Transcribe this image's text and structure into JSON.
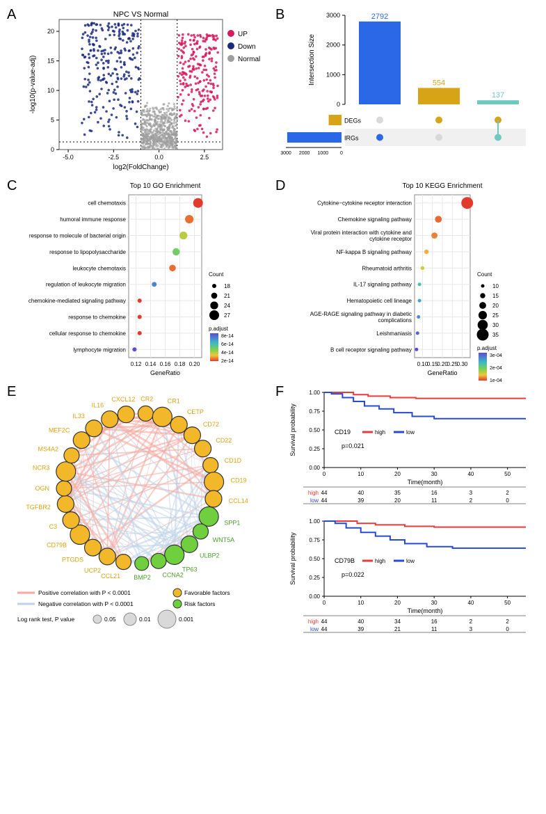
{
  "panelA": {
    "label": "A",
    "title": "NPC VS Normal",
    "xlabel": "log2(FoldChange)",
    "ylabel": "-log10(p-value-adj)",
    "xlim": [
      -5.5,
      3.5
    ],
    "ylim": [
      0,
      22
    ],
    "yticks": [
      0,
      5,
      10,
      15,
      20
    ],
    "xticks": [
      -5.0,
      -2.5,
      0.0,
      2.5
    ],
    "vline1": -1.0,
    "vline2": 1.0,
    "hline": 1.3,
    "legend": [
      {
        "label": "UP",
        "color": "#d6195c"
      },
      {
        "label": "Down",
        "color": "#1a2a7f"
      },
      {
        "label": "Normal",
        "color": "#9e9e9e"
      }
    ],
    "colors": {
      "up": "#d6195c",
      "down": "#1a2a7f",
      "normal": "#9e9e9e"
    },
    "border_color": "#555555",
    "background": "#ffffff"
  },
  "panelB": {
    "label": "B",
    "ylabel": "Intersection Size",
    "ylim": [
      0,
      3000
    ],
    "yticks": [
      0,
      1000,
      2000,
      3000
    ],
    "bars": [
      {
        "value": 2792,
        "color": "#2a68e8",
        "label": "2792"
      },
      {
        "value": 554,
        "color": "#d7a417",
        "label": "554"
      },
      {
        "value": 137,
        "color": "#6fc9c1",
        "label": "137"
      }
    ],
    "sets": [
      {
        "name": "DEGs",
        "size": 691,
        "color": "#d7a417"
      },
      {
        "name": "IRGs",
        "size": 2929,
        "color": "#2a68e8"
      }
    ],
    "set_xticks": [
      0,
      1000,
      2000,
      3000
    ],
    "matrix_bg": "#ffffff",
    "matrix_alt_bg": "#f0f0f0",
    "inactive_dot": "#d9d9d9"
  },
  "panelC": {
    "label": "C",
    "title": "Top 10 GO Enrichment",
    "xlabel": "GeneRatio",
    "xticks": [
      0.12,
      0.14,
      0.16,
      0.18,
      0.2
    ],
    "xlim": [
      0.11,
      0.21
    ],
    "terms": [
      {
        "name": "cell chemotaxis",
        "ratio": 0.205,
        "count": 27,
        "padj": 2e-14
      },
      {
        "name": "humoral immune response",
        "ratio": 0.193,
        "count": 25,
        "padj": 2.5e-14
      },
      {
        "name": "response to molecule of bacterial origin",
        "ratio": 0.185,
        "count": 24,
        "padj": 4e-14
      },
      {
        "name": "response to lipopolysaccharide",
        "ratio": 0.175,
        "count": 23,
        "padj": 5e-14
      },
      {
        "name": "leukocyte chemotaxis",
        "ratio": 0.17,
        "count": 22,
        "padj": 2.5e-14
      },
      {
        "name": "regulation of leukocyte migration",
        "ratio": 0.145,
        "count": 19,
        "padj": 7e-14
      },
      {
        "name": "chemokine-mediated signaling pathway",
        "ratio": 0.125,
        "count": 18,
        "padj": 2e-14
      },
      {
        "name": "response to chemokine",
        "ratio": 0.125,
        "count": 18,
        "padj": 2e-14
      },
      {
        "name": "cellular response to chemokine",
        "ratio": 0.125,
        "count": 18,
        "padj": 2e-14
      },
      {
        "name": "lymphocyte migration",
        "ratio": 0.118,
        "count": 18,
        "padj": 8e-14
      }
    ],
    "count_legend": [
      18,
      21,
      24,
      27
    ],
    "padj_legend": {
      "title": "p.adjust",
      "values": [
        "8e-14",
        "6e-14",
        "4e-14",
        "2e-14"
      ]
    },
    "grid_color": "#e8e8e8",
    "text_color": "#333333"
  },
  "panelD": {
    "label": "D",
    "title": "Top 10 KEGG Enrichment",
    "xlabel": "GeneRatio",
    "xticks": [
      0.1,
      0.15,
      0.2,
      0.25,
      0.3
    ],
    "xlim": [
      0.06,
      0.34
    ],
    "terms": [
      {
        "name": "Cytokine−cytokine receptor interaction",
        "ratio": 0.325,
        "count": 35,
        "padj": 5e-05
      },
      {
        "name": "Chemokine signaling pathway",
        "ratio": 0.18,
        "count": 20,
        "padj": 7e-05
      },
      {
        "name": "Viral protein interaction with cytokine and\ncytokine receptor",
        "ratio": 0.16,
        "count": 18,
        "padj": 8e-05
      },
      {
        "name": "NF-kappa B signaling pathway",
        "ratio": 0.12,
        "count": 13,
        "padj": 0.0001
      },
      {
        "name": "Rheumatoid arthritis",
        "ratio": 0.1,
        "count": 11,
        "padj": 0.00013
      },
      {
        "name": "IL-17 signaling pathway",
        "ratio": 0.085,
        "count": 10,
        "padj": 0.00022
      },
      {
        "name": "Hematopoietic cell lineage",
        "ratio": 0.085,
        "count": 10,
        "padj": 0.00025
      },
      {
        "name": "AGE-RAGE signaling pathway in diabetic\ncomplications",
        "ratio": 0.08,
        "count": 10,
        "padj": 0.00027
      },
      {
        "name": "Leishmaniasis",
        "ratio": 0.075,
        "count": 10,
        "padj": 0.0003
      },
      {
        "name": "B cell receptor signaling pathway",
        "ratio": 0.07,
        "count": 10,
        "padj": 0.00032
      }
    ],
    "count_legend": [
      10,
      15,
      20,
      25,
      30,
      35
    ],
    "padj_legend": {
      "title": "p.adjust",
      "values": [
        "3e-04",
        "2e-04",
        "1e-04"
      ]
    },
    "grid_color": "#e8e8e8"
  },
  "panelE": {
    "label": "E",
    "nodes": [
      {
        "name": "CXCL12",
        "type": "fav",
        "angle": 100,
        "size": 12
      },
      {
        "name": "CR2",
        "type": "fav",
        "angle": 85,
        "size": 11
      },
      {
        "name": "CR1",
        "type": "fav",
        "angle": 72,
        "size": 14
      },
      {
        "name": "CETP",
        "type": "fav",
        "angle": 58,
        "size": 12
      },
      {
        "name": "CD72",
        "type": "fav",
        "angle": 45,
        "size": 12
      },
      {
        "name": "CD22",
        "type": "fav",
        "angle": 32,
        "size": 12
      },
      {
        "name": "CD1D",
        "type": "fav",
        "angle": 18,
        "size": 11
      },
      {
        "name": "CD19",
        "type": "fav",
        "angle": 5,
        "size": 14
      },
      {
        "name": "CCL14",
        "type": "fav",
        "angle": -8,
        "size": 12
      },
      {
        "name": "SPP1",
        "type": "risk",
        "angle": -22,
        "size": 14
      },
      {
        "name": "WNT5A",
        "type": "risk",
        "angle": -35,
        "size": 11
      },
      {
        "name": "ULBP2",
        "type": "risk",
        "angle": -48,
        "size": 12
      },
      {
        "name": "TP63",
        "type": "risk",
        "angle": -62,
        "size": 14
      },
      {
        "name": "CCNA2",
        "type": "risk",
        "angle": -75,
        "size": 11
      },
      {
        "name": "BMP2",
        "type": "risk",
        "angle": -88,
        "size": 10
      },
      {
        "name": "CCL21",
        "type": "fav",
        "angle": -102,
        "size": 11
      },
      {
        "name": "UCP2",
        "type": "fav",
        "angle": -115,
        "size": 12
      },
      {
        "name": "PTGDS",
        "type": "fav",
        "angle": -128,
        "size": 12
      },
      {
        "name": "CD79B",
        "type": "fav",
        "angle": -142,
        "size": 14
      },
      {
        "name": "C3",
        "type": "fav",
        "angle": -155,
        "size": 12
      },
      {
        "name": "TGFBR2",
        "type": "fav",
        "angle": -168,
        "size": 12
      },
      {
        "name": "OGN",
        "type": "fav",
        "angle": 180,
        "size": 11
      },
      {
        "name": "NCR3",
        "type": "fav",
        "angle": 167,
        "size": 14
      },
      {
        "name": "MS4A2",
        "type": "fav",
        "angle": 154,
        "size": 11
      },
      {
        "name": "MEF2C",
        "type": "fav",
        "angle": 140,
        "size": 12
      },
      {
        "name": "IL33",
        "type": "fav",
        "angle": 127,
        "size": 12
      },
      {
        "name": "IL16",
        "type": "fav",
        "angle": 113,
        "size": 12
      }
    ],
    "colors": {
      "fav": "#f2b829",
      "risk": "#6fcf3e",
      "pos_edge": "#f4a8a0",
      "neg_edge": "#bfd3e6",
      "node_stroke": "#333333"
    },
    "legend": {
      "pos": "Positive correlation with P < 0.0001",
      "neg": "Negative correlation with P < 0.0001",
      "fav": "Favorable factors",
      "risk": "Risk factors",
      "size": "Log rank test, P value",
      "sizes": [
        {
          "label": "0.05",
          "r": 6
        },
        {
          "label": "0.01",
          "r": 9
        },
        {
          "label": "0.001",
          "r": 13
        }
      ]
    }
  },
  "panelF": {
    "label": "F",
    "plots": [
      {
        "gene": "CD19",
        "pvalue": "p=0.021",
        "xlabel": "Time(month)",
        "ylabel": "Survival probability",
        "xlim": [
          0,
          55
        ],
        "ylim": [
          0,
          1.0
        ],
        "xticks": [
          0,
          10,
          20,
          30,
          40,
          50
        ],
        "yticks": [
          0.0,
          0.25,
          0.5,
          0.75,
          1.0
        ],
        "groups": [
          {
            "name": "high",
            "color": "#e83a3a",
            "curve": [
              [
                0,
                1
              ],
              [
                3,
                1
              ],
              [
                8,
                0.97
              ],
              [
                12,
                0.95
              ],
              [
                18,
                0.93
              ],
              [
                25,
                0.92
              ],
              [
                35,
                0.92
              ],
              [
                55,
                0.92
              ]
            ],
            "risk": [
              44,
              40,
              35,
              16,
              3,
              2
            ]
          },
          {
            "name": "low",
            "color": "#2848d6",
            "curve": [
              [
                0,
                1
              ],
              [
                2,
                0.98
              ],
              [
                5,
                0.93
              ],
              [
                8,
                0.88
              ],
              [
                11,
                0.82
              ],
              [
                15,
                0.78
              ],
              [
                19,
                0.73
              ],
              [
                24,
                0.68
              ],
              [
                30,
                0.65
              ],
              [
                40,
                0.65
              ],
              [
                55,
                0.65
              ]
            ],
            "risk": [
              44,
              39,
              20,
              11,
              2,
              0
            ]
          }
        ]
      },
      {
        "gene": "CD79B",
        "pvalue": "p=0.022",
        "xlabel": "Time(month)",
        "ylabel": "Survival probability",
        "xlim": [
          0,
          55
        ],
        "ylim": [
          0,
          1.0
        ],
        "xticks": [
          0,
          10,
          20,
          30,
          40,
          50
        ],
        "yticks": [
          0.0,
          0.25,
          0.5,
          0.75,
          1.0
        ],
        "groups": [
          {
            "name": "high",
            "color": "#e83a3a",
            "curve": [
              [
                0,
                1
              ],
              [
                4,
                1
              ],
              [
                9,
                0.97
              ],
              [
                14,
                0.95
              ],
              [
                22,
                0.93
              ],
              [
                30,
                0.92
              ],
              [
                55,
                0.92
              ]
            ],
            "risk": [
              44,
              40,
              34,
              16,
              2,
              2
            ]
          },
          {
            "name": "low",
            "color": "#2848d6",
            "curve": [
              [
                0,
                1
              ],
              [
                3,
                0.97
              ],
              [
                6,
                0.91
              ],
              [
                10,
                0.85
              ],
              [
                14,
                0.8
              ],
              [
                18,
                0.75
              ],
              [
                22,
                0.7
              ],
              [
                28,
                0.66
              ],
              [
                35,
                0.64
              ],
              [
                55,
                0.64
              ]
            ],
            "risk": [
              44,
              39,
              21,
              11,
              3,
              0
            ]
          }
        ]
      }
    ]
  }
}
